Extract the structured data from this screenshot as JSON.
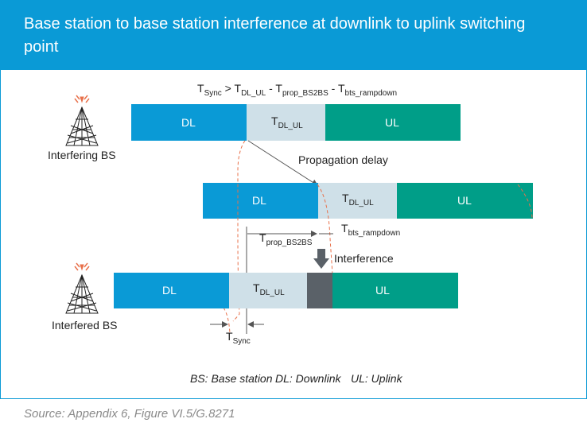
{
  "header": {
    "title": "Base station to base station interference at downlink to uplink switching point"
  },
  "diagram": {
    "formula": {
      "t_sync": "T",
      "t_sync_sub": "Sync",
      "gt": " > T",
      "dl_ul_sub": "DL_UL",
      "minus1": " - T",
      "prop_sub": "prop_BS2BS",
      "minus2": " - T",
      "ramp_sub": "bts_rampdown"
    },
    "interfering_bs_label": "Interfering BS",
    "interfered_bs_label": "Interfered BS",
    "propagation_delay_label": "Propagation delay",
    "interference_label": "Interference",
    "segment_dl": "DL",
    "segment_ul": "UL",
    "t_dl_ul": {
      "t": "T",
      "sub": "DL_UL"
    },
    "t_prop": {
      "t": "T",
      "sub": "prop_BS2BS"
    },
    "t_ramp": {
      "t": "T",
      "sub": "bts_rampdown"
    },
    "t_sync_label": {
      "t": "T",
      "sub": "Sync"
    },
    "legend": {
      "bs": "BS: Base station",
      "dl": "DL: Downlink",
      "ul": "UL: Uplink"
    },
    "colors": {
      "dl": "#0a9ad6",
      "gap": "#cfe0e8",
      "ul": "#009e88",
      "interference": "#5a6168",
      "dashed": "#e8704a",
      "tower": "#e8704a"
    }
  },
  "source": "Source: Appendix 6, Figure VI.5/G.8271"
}
